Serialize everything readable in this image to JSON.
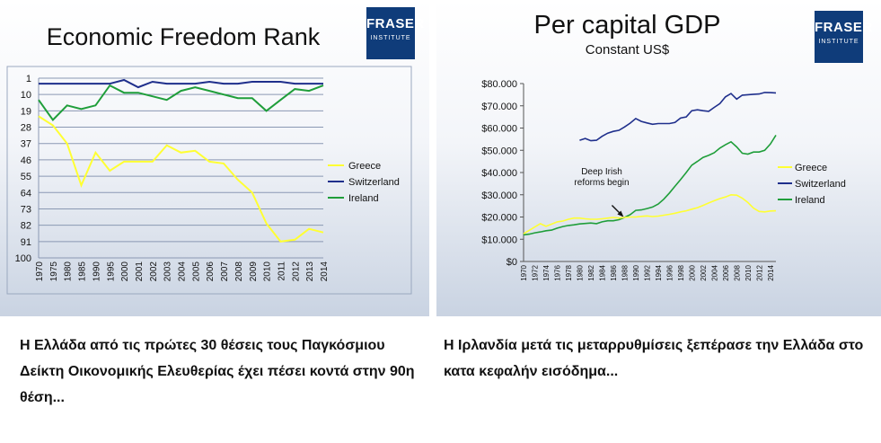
{
  "left_panel": {
    "caption": "Η Ελλάδα από τις πρώτες 30 θέσεις τους Παγκόσμιου Δείκτη Οικονομικής Ελευθερίας έχει πέσει κοντά στην 90η θέση...",
    "logo": {
      "name": "FRASER",
      "subtitle": "INSTITUTE"
    }
  },
  "right_panel": {
    "caption": "Η Ιρλανδία μετά τις μεταρρυθμίσεις ξεπέρασε την Ελλάδα στο κατα κεφαλήν εισόδημα...",
    "logo": {
      "name": "FRASER",
      "subtitle": "INSTITUTE"
    }
  },
  "colors": {
    "greece": "#ffff33",
    "switzerland": "#1f2f8c",
    "ireland": "#1f9e3a",
    "logo": "#0f3c7a"
  },
  "chart_data": [
    {
      "type": "line",
      "title": "Economic Freedom Rank",
      "categories": [
        "1970",
        "1975",
        "1980",
        "1985",
        "1990",
        "1995",
        "2000",
        "2001",
        "2002",
        "2003",
        "2004",
        "2005",
        "2006",
        "2007",
        "2008",
        "2009",
        "2010",
        "2011",
        "2012",
        "2013",
        "2014"
      ],
      "y_ticks": [
        "1",
        "10",
        "19",
        "28",
        "37",
        "46",
        "55",
        "64",
        "73",
        "82",
        "91",
        "100"
      ],
      "ylim": [
        1,
        100
      ],
      "y_inverted": true,
      "grid": true,
      "legend_position": "right",
      "series": [
        {
          "name": "Greece",
          "values": [
            22,
            27,
            37,
            60,
            42,
            52,
            47,
            47,
            47,
            38,
            42,
            41,
            47,
            48,
            57,
            64,
            81,
            91,
            90,
            84,
            86
          ]
        },
        {
          "name": "Switzerland",
          "values": [
            4,
            4,
            4,
            4,
            4,
            4,
            2,
            6,
            3,
            4,
            4,
            4,
            3,
            4,
            4,
            3,
            3,
            3,
            4,
            4,
            4
          ]
        },
        {
          "name": "Ireland",
          "values": [
            13,
            24,
            16,
            18,
            16,
            5,
            9,
            9,
            11,
            13,
            8,
            6,
            8,
            10,
            12,
            12,
            19,
            13,
            7,
            8,
            5
          ]
        }
      ]
    },
    {
      "type": "line",
      "title": "Per capital GDP",
      "subtitle": "Constant US$",
      "x": [
        1970,
        1971,
        1972,
        1973,
        1974,
        1975,
        1976,
        1977,
        1978,
        1979,
        1980,
        1981,
        1982,
        1983,
        1984,
        1985,
        1986,
        1987,
        1988,
        1989,
        1990,
        1991,
        1992,
        1993,
        1994,
        1995,
        1996,
        1997,
        1998,
        1999,
        2000,
        2001,
        2002,
        2003,
        2004,
        2005,
        2006,
        2007,
        2008,
        2009,
        2010,
        2011,
        2012,
        2013,
        2014,
        2015
      ],
      "x_ticks": [
        "1970",
        "1972",
        "1974",
        "1976",
        "1978",
        "1980",
        "1982",
        "1984",
        "1986",
        "1988",
        "1990",
        "1992",
        "1994",
        "1996",
        "1998",
        "2000",
        "2002",
        "2004",
        "2006",
        "2008",
        "2010",
        "2012",
        "2014"
      ],
      "y_ticks": [
        "$0",
        "$10.000",
        "$20.000",
        "$30.000",
        "$40.000",
        "$50.000",
        "$60.000",
        "$70.000",
        "$80.000"
      ],
      "ylim": [
        0,
        80000
      ],
      "grid": false,
      "legend_position": "right",
      "annotation": {
        "text": "Deep Irish reforms begin",
        "x": 1988,
        "y": 18000
      },
      "series": [
        {
          "name": "Greece",
          "values": [
            12500,
            14000,
            15500,
            17000,
            15800,
            16800,
            17800,
            18200,
            19000,
            19500,
            19500,
            19200,
            19000,
            19000,
            19200,
            19500,
            19800,
            19500,
            19800,
            20000,
            20000,
            20300,
            20500,
            20200,
            20400,
            20800,
            21200,
            21700,
            22300,
            22800,
            23500,
            24200,
            25200,
            26300,
            27300,
            28300,
            29000,
            30000,
            29800,
            28500,
            26500,
            24000,
            22500,
            22300,
            22700,
            22800
          ]
        },
        {
          "name": "Switzerland",
          "values": [
            null,
            null,
            null,
            null,
            null,
            null,
            null,
            null,
            null,
            null,
            54500,
            55300,
            54300,
            54500,
            56300,
            57700,
            58500,
            59000,
            60500,
            62200,
            64300,
            63000,
            62300,
            61700,
            62000,
            62000,
            62000,
            62500,
            64500,
            65000,
            67800,
            68200,
            67800,
            67500,
            69300,
            71000,
            74000,
            75500,
            73000,
            74800,
            75000,
            75200,
            75300,
            76000,
            75900,
            75800
          ]
        },
        {
          "name": "Ireland",
          "values": [
            12000,
            12300,
            12900,
            13300,
            13800,
            14100,
            15000,
            15700,
            16200,
            16500,
            16900,
            17100,
            17300,
            17000,
            17800,
            18300,
            18300,
            18800,
            19800,
            21000,
            23000,
            23200,
            23800,
            24500,
            25800,
            28000,
            30800,
            33800,
            36800,
            40000,
            43300,
            45000,
            46800,
            47700,
            48900,
            51000,
            52500,
            53800,
            51500,
            48700,
            48300,
            49200,
            49200,
            50000,
            52800,
            56800
          ]
        }
      ]
    }
  ]
}
